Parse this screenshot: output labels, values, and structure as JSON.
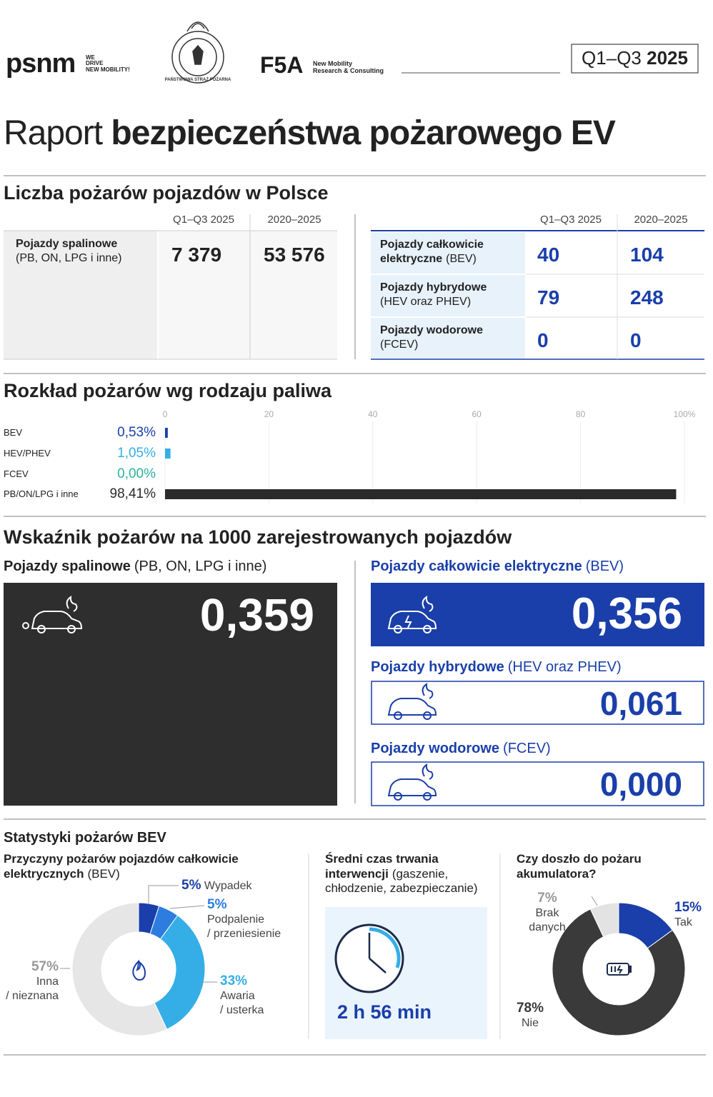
{
  "header": {
    "brand": {
      "name": "psnm",
      "tagline": "WE\nDRIVE\nNEW MOBILITY!"
    },
    "emblem": "PAŃSTWOWA STRAŻ POŻARNA",
    "partner": {
      "name": "F5A",
      "tagline": "New Mobility\nResearch & Consulting"
    },
    "period": {
      "range": "Q1–Q3",
      "year": "2025"
    },
    "title": {
      "light": "Raport",
      "bold": "bezpieczeństwa pożarowego EV"
    }
  },
  "fire_counts": {
    "title": "Liczba pożarów pojazdów w Polsce",
    "columns": [
      "Q1–Q3 2025",
      "2020–2025"
    ],
    "combustion": [
      {
        "name": "Pojazdy spalinowe",
        "detail": "(PB, ON, LPG i inne)",
        "values": [
          "7 379",
          "53 576"
        ]
      }
    ],
    "electrified": [
      {
        "name": "Pojazdy całkowicie\nelektryczne",
        "detail": "(BEV)",
        "values": [
          "40",
          "104"
        ]
      },
      {
        "name": "Pojazdy hybrydowe",
        "detail": "(HEV oraz PHEV)",
        "values": [
          "79",
          "248"
        ]
      },
      {
        "name": "Pojazdy wodorowe",
        "detail": "(FCEV)",
        "values": [
          "0",
          "0"
        ]
      }
    ]
  },
  "chart_data": [
    {
      "type": "bar",
      "orientation": "horizontal",
      "title": "Rozkład pożarów wg rodzaju paliwa",
      "categories": [
        "BEV",
        "HEV/PHEV",
        "FCEV",
        "PB/ON/LPG i inne"
      ],
      "values": [
        0.53,
        1.05,
        0,
        98.41
      ],
      "value_labels": [
        "0,53%",
        "1,05%",
        "0,00%",
        "98,41%"
      ],
      "colors": [
        "#1a3faa",
        "#35aee8",
        "#2bb3a0",
        "#2a2a2a"
      ],
      "xlim": [
        0,
        100
      ],
      "xticks": [
        0,
        20,
        40,
        60,
        80,
        {
          "value": 100,
          "label": "100%"
        }
      ],
      "grid": true
    },
    {
      "type": "donut",
      "title": "Przyczyny pożarów pojazdów całkowicie\nelektrycznych",
      "subtitle": "(BEV)",
      "categories": [
        "Wypadek",
        "Podpalenie\n/ przeniesienie",
        "Awaria\n/ usterka",
        "Inna\n/ nieznana"
      ],
      "values": [
        5,
        5,
        33,
        57
      ],
      "value_labels": [
        "5%",
        "5%",
        "33%",
        "57%"
      ],
      "colors": [
        "#1a3faa",
        "#2d7de0",
        "#35aee8",
        "#e6e6e6"
      ]
    },
    {
      "type": "donut",
      "title": "Czy doszło do pożaru\nakumulatora?",
      "categories": [
        "Tak",
        "Nie",
        "Brak\ndanych"
      ],
      "values": [
        15,
        78,
        7
      ],
      "value_labels": [
        "15%",
        "78%",
        "7%"
      ],
      "colors": [
        "#1a3faa",
        "#3a3a3a",
        "#e3e3e3"
      ]
    }
  ],
  "rates": {
    "title": "Wskaźnik pożarów na 1000 zarejestrowanych pojazdów",
    "items": [
      {
        "name": "Pojazdy spalinowe",
        "detail": "(PB, ON, LPG i inne)",
        "value": "0,359"
      },
      {
        "name": "Pojazdy całkowicie elektryczne",
        "detail": "(BEV)",
        "value": "0,356"
      },
      {
        "name": "Pojazdy hybrydowe",
        "detail": "(HEV oraz PHEV)",
        "value": "0,061"
      },
      {
        "name": "Pojazdy wodorowe",
        "detail": "(FCEV)",
        "value": "0,000"
      }
    ]
  },
  "bev_stats": {
    "title": "Statystyki pożarów BEV",
    "duration": {
      "title": "Średni czas trwania\ninterwencji",
      "detail": "(gaszenie,\nchłodzenie, zabezpieczanie)",
      "value": "2 h 56 min"
    }
  }
}
